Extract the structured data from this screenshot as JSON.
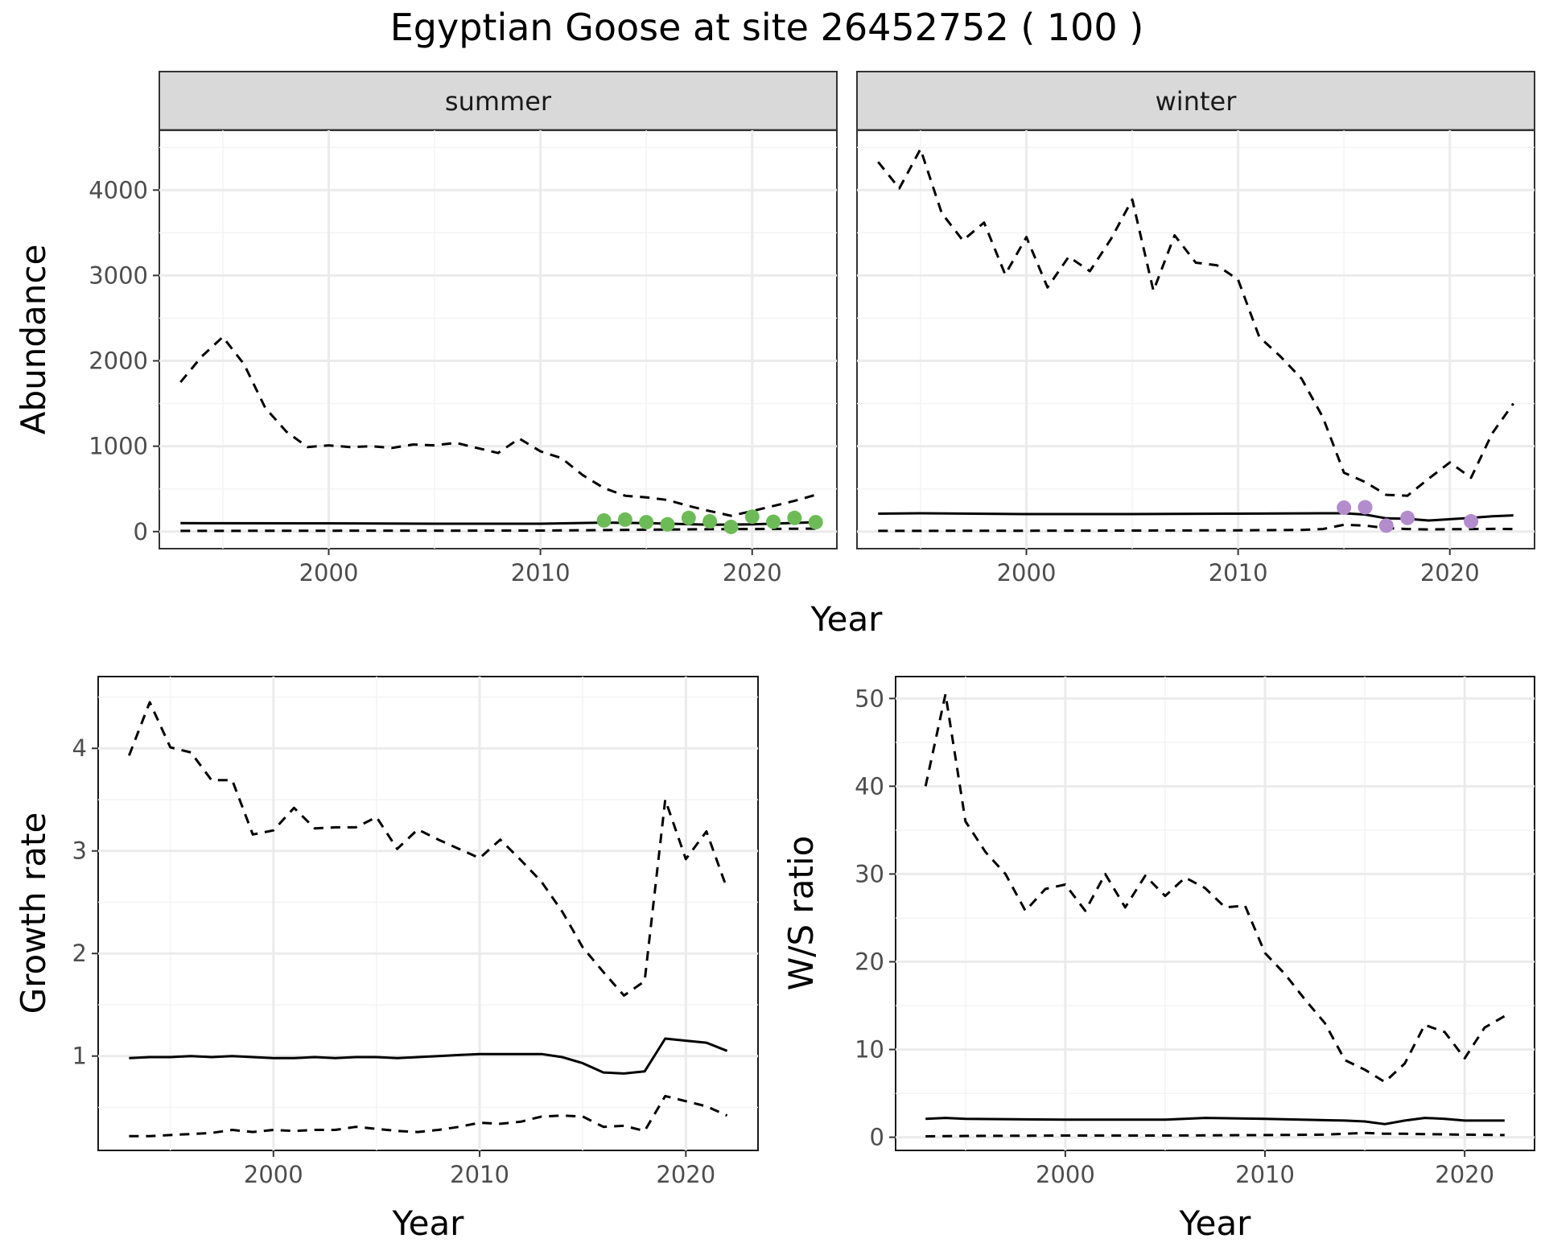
{
  "figure": {
    "title": "Egyptian Goose at site 26452752 ( 100 )",
    "colors": {
      "summer_points": "#6dbb57",
      "winter_points": "#b28ccc",
      "lines": "#000000",
      "strip_fill": "#d9d9d9",
      "grid_major": "#ebebeb",
      "grid_minor": "#f3f3f3"
    }
  },
  "chart_data": [
    {
      "type": "line",
      "panel": "summer",
      "facet_label": "summer",
      "xlabel": "Year",
      "ylabel": "Abundance",
      "xlim": [
        1992,
        2024
      ],
      "ylim": [
        -200,
        4700
      ],
      "xticks": [
        2000,
        2010,
        2020
      ],
      "yticks": [
        0,
        1000,
        2000,
        3000,
        4000
      ],
      "grid": true,
      "series": [
        {
          "style": "solid",
          "x": [
            1993,
            1995,
            2000,
            2005,
            2010,
            2013,
            2015,
            2018,
            2020,
            2023
          ],
          "y": [
            100,
            98,
            97,
            92,
            92,
            105,
            100,
            80,
            85,
            110
          ]
        },
        {
          "style": "dashed",
          "x": [
            1993,
            1994,
            1995,
            1996,
            1997,
            1998,
            1999,
            2000,
            2001,
            2002,
            2003,
            2004,
            2005,
            2006,
            2007,
            2008,
            2009,
            2010,
            2011,
            2012,
            2013,
            2014,
            2015,
            2016,
            2017,
            2018,
            2019,
            2020,
            2021,
            2022,
            2023
          ],
          "y": [
            1750,
            2050,
            2280,
            1960,
            1450,
            1170,
            990,
            1010,
            990,
            1000,
            980,
            1020,
            1010,
            1040,
            980,
            920,
            1090,
            940,
            860,
            660,
            510,
            420,
            400,
            370,
            300,
            240,
            185,
            240,
            300,
            360,
            430
          ]
        },
        {
          "style": "dashed",
          "x": [
            1993,
            2000,
            2010,
            2013,
            2015,
            2018,
            2020,
            2023
          ],
          "y": [
            8,
            10,
            12,
            18,
            22,
            28,
            30,
            35
          ]
        },
        {
          "style": "points",
          "color": "#6dbb57",
          "x": [
            2013,
            2014,
            2015,
            2016,
            2017,
            2018,
            2019,
            2020,
            2021,
            2022,
            2023
          ],
          "y": [
            130,
            140,
            110,
            85,
            160,
            120,
            55,
            175,
            115,
            160,
            110
          ]
        }
      ]
    },
    {
      "type": "line",
      "panel": "winter",
      "facet_label": "winter",
      "xlim": [
        1992,
        2024
      ],
      "ylim": [
        -200,
        4700
      ],
      "xticks": [
        2000,
        2010,
        2020
      ],
      "grid": true,
      "series": [
        {
          "style": "solid",
          "x": [
            1993,
            1995,
            2000,
            2005,
            2010,
            2014,
            2015,
            2016,
            2017,
            2018,
            2019,
            2020,
            2021,
            2022,
            2023
          ],
          "y": [
            210,
            215,
            205,
            205,
            210,
            215,
            215,
            200,
            155,
            150,
            130,
            145,
            160,
            180,
            190
          ]
        },
        {
          "style": "dashed",
          "x": [
            1993,
            1994,
            1995,
            1996,
            1997,
            1998,
            1999,
            2000,
            2001,
            2002,
            2003,
            2004,
            2005,
            2006,
            2007,
            2008,
            2009,
            2010,
            2011,
            2012,
            2013,
            2014,
            2015,
            2016,
            2017,
            2018,
            2019,
            2020,
            2021,
            2022,
            2023
          ],
          "y": [
            4330,
            4020,
            4480,
            3730,
            3410,
            3620,
            3010,
            3450,
            2860,
            3220,
            3050,
            3430,
            3890,
            2820,
            3470,
            3150,
            3120,
            2950,
            2280,
            2050,
            1790,
            1340,
            690,
            580,
            430,
            420,
            620,
            810,
            630,
            1150,
            1500
          ]
        },
        {
          "style": "dashed",
          "x": [
            1993,
            2000,
            2005,
            2010,
            2013,
            2014,
            2015,
            2016,
            2017,
            2018,
            2019,
            2020,
            2021,
            2022,
            2023
          ],
          "y": [
            8,
            10,
            12,
            15,
            20,
            30,
            80,
            70,
            40,
            30,
            25,
            28,
            30,
            32,
            30
          ]
        },
        {
          "style": "points",
          "color": "#b28ccc",
          "x": [
            2015,
            2016,
            2017,
            2018,
            2021
          ],
          "y": [
            280,
            285,
            70,
            160,
            120
          ]
        }
      ]
    },
    {
      "type": "line",
      "panel": "growth",
      "xlabel": "Year",
      "ylabel": "Growth rate",
      "xlim": [
        1991.5,
        2023.5
      ],
      "ylim": [
        0.08,
        4.7
      ],
      "xticks": [
        2000,
        2010,
        2020
      ],
      "yticks": [
        1,
        2,
        3,
        4
      ],
      "grid": true,
      "series": [
        {
          "style": "solid",
          "x": [
            1993,
            1994,
            1995,
            1996,
            1997,
            1998,
            1999,
            2000,
            2001,
            2002,
            2003,
            2004,
            2005,
            2006,
            2007,
            2008,
            2009,
            2010,
            2011,
            2012,
            2013,
            2014,
            2015,
            2016,
            2017,
            2018,
            2019,
            2020,
            2021,
            2022
          ],
          "y": [
            0.98,
            0.99,
            0.99,
            1.0,
            0.99,
            1.0,
            0.99,
            0.98,
            0.98,
            0.99,
            0.98,
            0.99,
            0.99,
            0.98,
            0.99,
            1.0,
            1.01,
            1.02,
            1.02,
            1.02,
            1.02,
            0.99,
            0.93,
            0.84,
            0.83,
            0.85,
            1.17,
            1.15,
            1.13,
            1.05
          ]
        },
        {
          "style": "dashed",
          "x": [
            1993,
            1994,
            1995,
            1996,
            1997,
            1998,
            1999,
            2000,
            2001,
            2002,
            2003,
            2004,
            2005,
            2006,
            2007,
            2008,
            2009,
            2010,
            2011,
            2012,
            2013,
            2014,
            2015,
            2016,
            2017,
            2018,
            2019,
            2020,
            2021,
            2022
          ],
          "y": [
            3.93,
            4.45,
            4.01,
            3.96,
            3.69,
            3.69,
            3.16,
            3.2,
            3.42,
            3.22,
            3.23,
            3.23,
            3.33,
            3.02,
            3.21,
            3.11,
            3.02,
            2.93,
            3.11,
            2.91,
            2.7,
            2.41,
            2.06,
            1.82,
            1.59,
            1.73,
            3.5,
            2.92,
            3.19,
            2.63
          ]
        },
        {
          "style": "dashed",
          "x": [
            1993,
            1994,
            1995,
            1996,
            1997,
            1998,
            1999,
            2000,
            2001,
            2002,
            2003,
            2004,
            2005,
            2006,
            2007,
            2008,
            2009,
            2010,
            2011,
            2012,
            2013,
            2014,
            2015,
            2016,
            2017,
            2018,
            2019,
            2020,
            2021,
            2022
          ],
          "y": [
            0.22,
            0.22,
            0.23,
            0.24,
            0.25,
            0.28,
            0.26,
            0.28,
            0.27,
            0.28,
            0.28,
            0.31,
            0.29,
            0.27,
            0.26,
            0.28,
            0.31,
            0.35,
            0.34,
            0.36,
            0.41,
            0.42,
            0.41,
            0.31,
            0.32,
            0.27,
            0.61,
            0.56,
            0.51,
            0.42
          ]
        }
      ]
    },
    {
      "type": "line",
      "panel": "ratio",
      "xlabel": "Year",
      "ylabel": "W/S ratio",
      "xlim": [
        1991.5,
        2023.5
      ],
      "ylim": [
        -1.5,
        52.5
      ],
      "xticks": [
        2000,
        2010,
        2020
      ],
      "yticks": [
        0,
        10,
        20,
        30,
        40,
        50
      ],
      "grid": true,
      "series": [
        {
          "style": "solid",
          "x": [
            1993,
            1994,
            1995,
            2000,
            2005,
            2007,
            2010,
            2014,
            2015,
            2016,
            2017,
            2018,
            2019,
            2020,
            2022
          ],
          "y": [
            2.1,
            2.2,
            2.1,
            2.0,
            2.0,
            2.2,
            2.1,
            1.9,
            1.8,
            1.5,
            1.9,
            2.2,
            2.1,
            1.9,
            1.9
          ]
        },
        {
          "style": "dashed",
          "x": [
            1993,
            1994,
            1995,
            1996,
            1997,
            1998,
            1999,
            2000,
            2001,
            2002,
            2003,
            2004,
            2005,
            2006,
            2007,
            2008,
            2009,
            2010,
            2011,
            2012,
            2013,
            2014,
            2015,
            2016,
            2017,
            2018,
            2019,
            2020,
            2021,
            2022
          ],
          "y": [
            40,
            50.5,
            36,
            32.5,
            30,
            25.8,
            28.3,
            28.8,
            25.8,
            30,
            26.2,
            29.8,
            27.5,
            29.6,
            28.4,
            26.2,
            26.4,
            21,
            18.6,
            15.7,
            13,
            8.8,
            7.7,
            6.3,
            8.4,
            12.8,
            12,
            9,
            12.5,
            13.8
          ]
        },
        {
          "style": "dashed",
          "x": [
            1993,
            1995,
            2000,
            2005,
            2010,
            2013,
            2014,
            2015,
            2016,
            2017,
            2018,
            2020,
            2022
          ],
          "y": [
            0.1,
            0.15,
            0.2,
            0.2,
            0.25,
            0.3,
            0.4,
            0.5,
            0.4,
            0.4,
            0.35,
            0.3,
            0.25
          ]
        }
      ]
    }
  ]
}
